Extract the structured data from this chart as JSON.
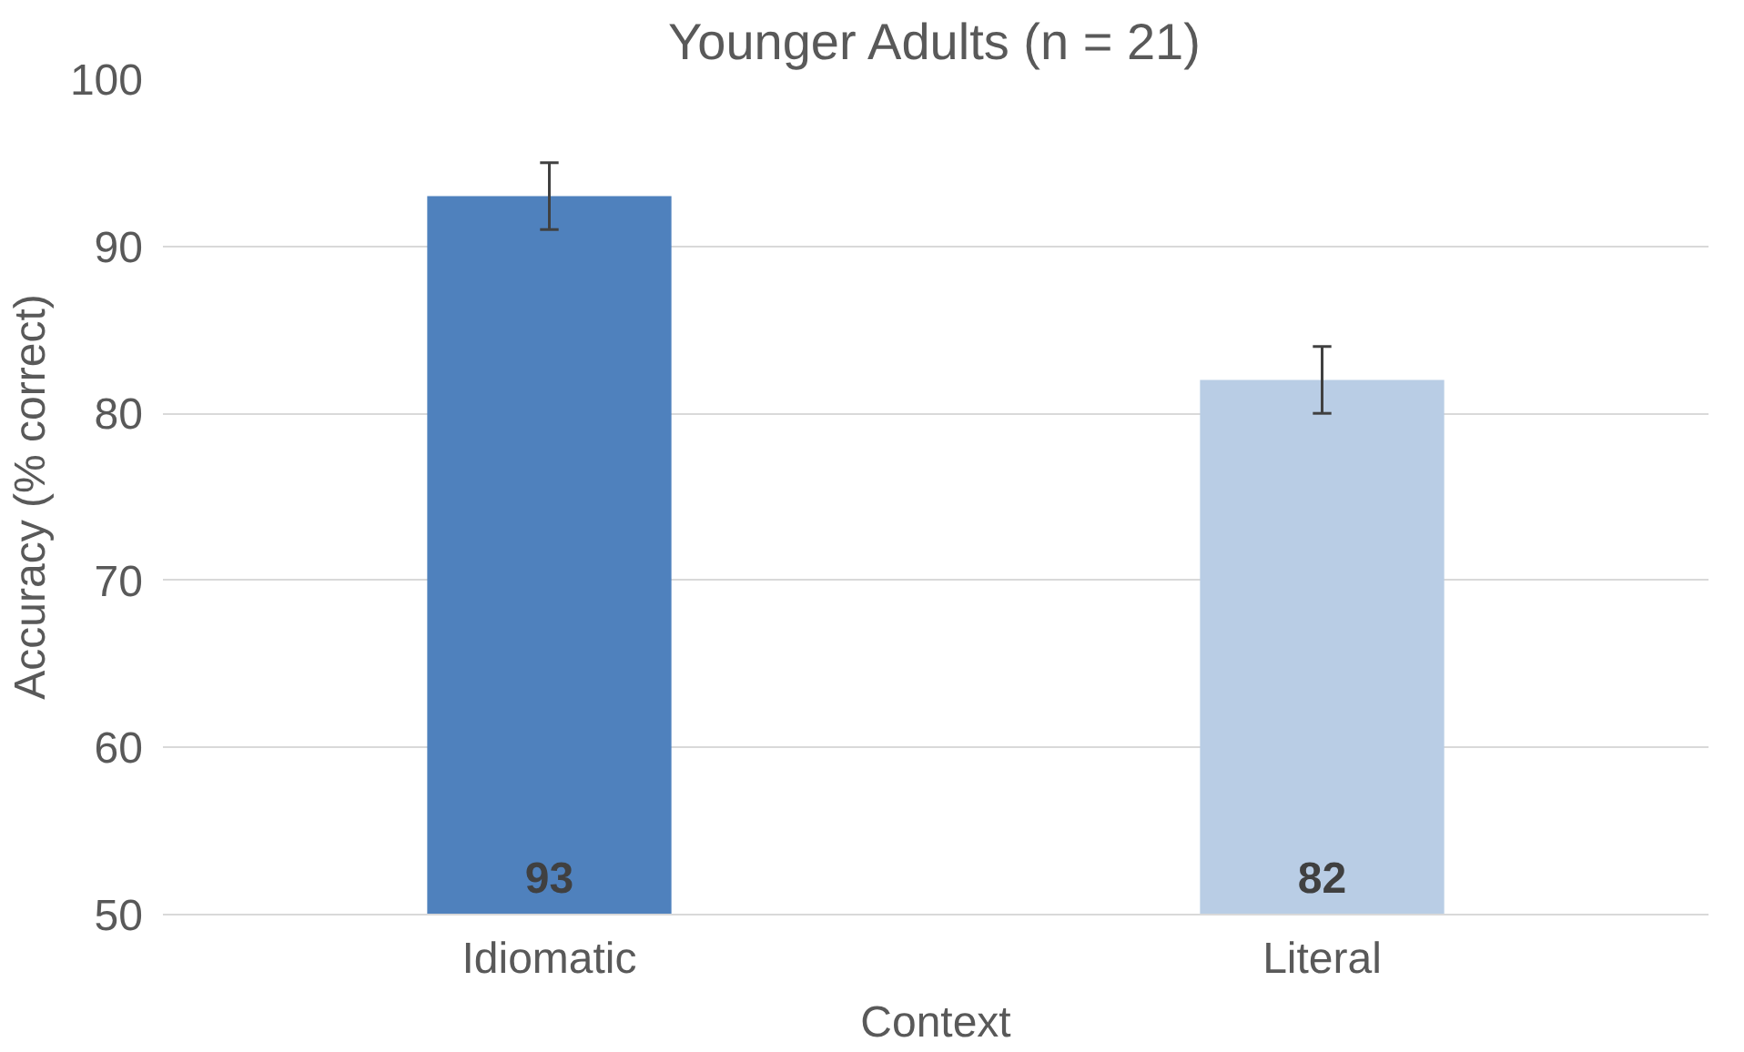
{
  "chart_data": {
    "type": "bar",
    "title": "Younger Adults (n = 21)",
    "xlabel": "Context",
    "ylabel": "Accuracy (% correct)",
    "categories": [
      "Idiomatic",
      "Literal"
    ],
    "values": [
      93,
      82
    ],
    "colors": [
      "#4f81bd",
      "#b9cde5"
    ],
    "errors": [
      2,
      2
    ],
    "data_labels": true,
    "ylim": [
      50,
      100
    ],
    "yticks": [
      50,
      60,
      70,
      80,
      90,
      100
    ],
    "grid": "y"
  }
}
